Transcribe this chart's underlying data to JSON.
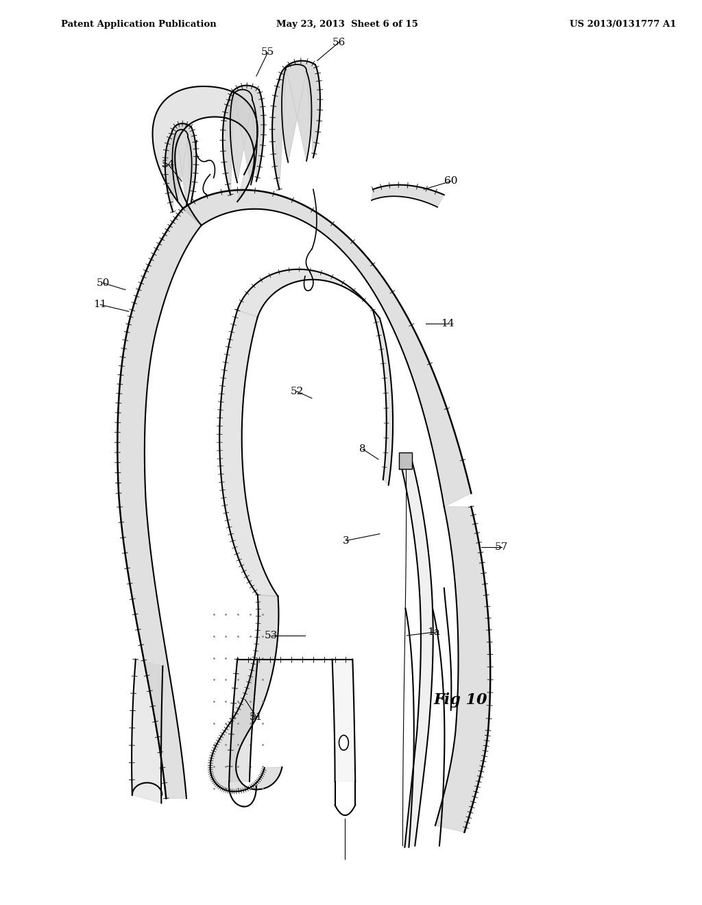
{
  "header_left": "Patent Application Publication",
  "header_mid": "May 23, 2013  Sheet 6 of 15",
  "header_right": "US 2013/0131777 A1",
  "fig_label": "Fig 10",
  "background_color": "#ffffff",
  "line_color": "#000000",
  "stent_fill": "#cccccc",
  "dot_fill": "#aaaaaa"
}
